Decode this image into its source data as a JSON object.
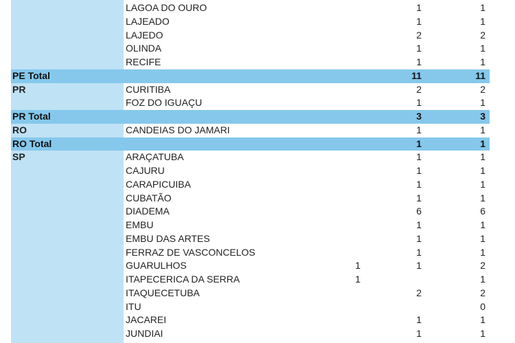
{
  "colors": {
    "state_column": "#bfe2f5",
    "total_row": "#85c8ec"
  },
  "rows": [
    {
      "state": "",
      "city": "LAGOA DO OURO",
      "a": "",
      "b": "1",
      "c": "1"
    },
    {
      "state": "",
      "city": "LAJEADO",
      "a": "",
      "b": "1",
      "c": "1"
    },
    {
      "state": "",
      "city": "LAJEDO",
      "a": "",
      "b": "2",
      "c": "2"
    },
    {
      "state": "",
      "city": "OLINDA",
      "a": "",
      "b": "1",
      "c": "1"
    },
    {
      "state": "",
      "city": "RECIFE",
      "a": "",
      "b": "1",
      "c": "1"
    },
    {
      "total": true,
      "state": "PE Total",
      "city": "",
      "a": "",
      "b": "11",
      "c": "11"
    },
    {
      "state": "PR",
      "city": "CURITIBA",
      "a": "",
      "b": "2",
      "c": "2"
    },
    {
      "state": "",
      "city": "FOZ DO IGUAÇU",
      "a": "",
      "b": "1",
      "c": "1"
    },
    {
      "total": true,
      "state": "PR Total",
      "city": "",
      "a": "",
      "b": "3",
      "c": "3"
    },
    {
      "state": "RO",
      "city": "CANDEIAS DO JAMARI",
      "a": "",
      "b": "1",
      "c": "1"
    },
    {
      "total": true,
      "state": "RO Total",
      "city": "",
      "a": "",
      "b": "1",
      "c": "1"
    },
    {
      "state": "SP",
      "city": "ARAÇATUBA",
      "a": "",
      "b": "1",
      "c": "1"
    },
    {
      "state": "",
      "city": "CAJURU",
      "a": "",
      "b": "1",
      "c": "1"
    },
    {
      "state": "",
      "city": "CARAPICUIBA",
      "a": "",
      "b": "1",
      "c": "1"
    },
    {
      "state": "",
      "city": "CUBATÃO",
      "a": "",
      "b": "1",
      "c": "1"
    },
    {
      "state": "",
      "city": "DIADEMA",
      "a": "",
      "b": "6",
      "c": "6"
    },
    {
      "state": "",
      "city": "EMBU",
      "a": "",
      "b": "1",
      "c": "1"
    },
    {
      "state": "",
      "city": "EMBU DAS ARTES",
      "a": "",
      "b": "1",
      "c": "1"
    },
    {
      "state": "",
      "city": "FERRAZ DE VASCONCELOS",
      "a": "",
      "b": "1",
      "c": "1"
    },
    {
      "state": "",
      "city": "GUARULHOS",
      "a": "1",
      "b": "1",
      "c": "2"
    },
    {
      "state": "",
      "city": "ITAPECERICA DA SERRA",
      "a": "1",
      "b": "",
      "c": "1"
    },
    {
      "state": "",
      "city": "ITAQUECETUBA",
      "a": "",
      "b": "2",
      "c": "2"
    },
    {
      "state": "",
      "city": "ITU",
      "a": "",
      "b": "",
      "c": "0"
    },
    {
      "state": "",
      "city": "JACAREI",
      "a": "",
      "b": "1",
      "c": "1"
    },
    {
      "state": "",
      "city": "JUNDIAI",
      "a": "",
      "b": "1",
      "c": "1"
    }
  ]
}
